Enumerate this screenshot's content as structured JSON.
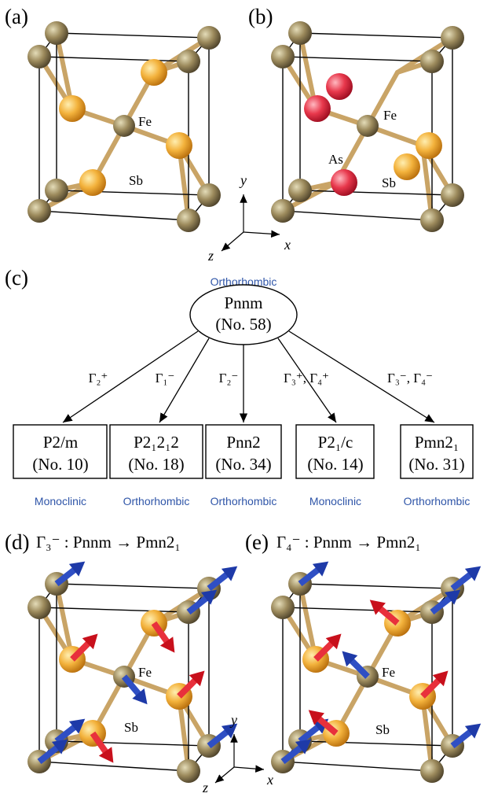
{
  "panel_a": {
    "label": "(a)",
    "fe": "Fe",
    "sb": "Sb"
  },
  "panel_b": {
    "label": "(b)",
    "fe": "Fe",
    "sb": "Sb",
    "as": "As"
  },
  "axes_top": {
    "x": "x",
    "y": "y",
    "z": "z"
  },
  "panel_c": {
    "label": "(c)",
    "parent": {
      "system": "Orthorhombic",
      "group": "Pnnm",
      "number": "(No. 58)"
    },
    "branches": [
      {
        "irrep": "Γ₂⁺",
        "group": "P2/m",
        "number": "(No. 10)",
        "system": "Monoclinic"
      },
      {
        "irrep": "Γ₁⁻",
        "group": "P2₁2₁2",
        "number": "(No. 18)",
        "system": "Orthorhombic"
      },
      {
        "irrep": "Γ₂⁻",
        "group": "Pnn2",
        "number": "(No. 34)",
        "system": "Orthorhombic"
      },
      {
        "irrep": "Γ₃⁺, Γ₄⁺",
        "group": "P2₁/c",
        "number": "(No. 14)",
        "system": "Monoclinic"
      },
      {
        "irrep": "Γ₃⁻, Γ₄⁻",
        "group": "Pmn2₁",
        "number": "(No. 31)",
        "system": "Orthorhombic"
      }
    ]
  },
  "panel_d": {
    "label": "(d)",
    "title": "Γ₃⁻ : Pnnm → Pmn2₁",
    "fe": "Fe",
    "sb": "Sb"
  },
  "panel_e": {
    "label": "(e)",
    "title": "Γ₄⁻ : Pnnm → Pmn2₁",
    "fe": "Fe",
    "sb": "Sb"
  },
  "axes_bottom": {
    "x": "x",
    "y": "y",
    "z": "z"
  }
}
